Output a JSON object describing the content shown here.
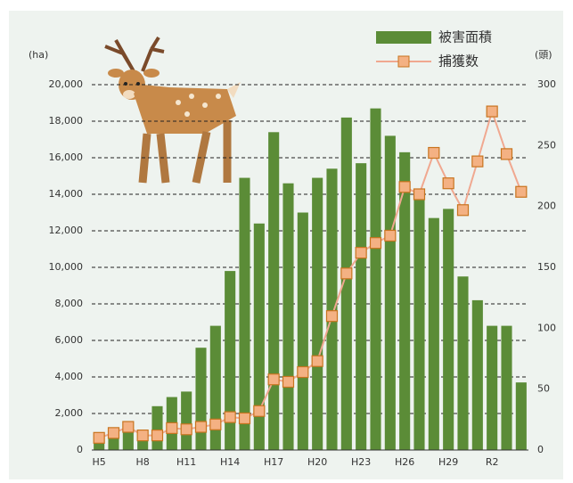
{
  "chart_data": {
    "type": "bar_line",
    "categories": [
      "H5",
      null,
      null,
      "H8",
      null,
      null,
      "H11",
      null,
      null,
      "H14",
      null,
      null,
      "H17",
      null,
      null,
      "H20",
      null,
      null,
      "H23",
      null,
      null,
      "H26",
      null,
      null,
      "H29",
      null,
      null,
      "R2",
      null,
      null
    ],
    "series": [
      {
        "name": "被害面積",
        "type": "bar",
        "color": "#5b8c37",
        "axis": "y",
        "values": [
          500,
          1000,
          1500,
          1000,
          2400,
          2900,
          3200,
          5600,
          6800,
          9800,
          14900,
          12400,
          17400,
          14600,
          13000,
          14900,
          15400,
          18200,
          15700,
          18700,
          17200,
          16300,
          14000,
          12700,
          13200,
          9500,
          8200,
          6800,
          6800,
          3700
        ]
      },
      {
        "name": "捕獲数",
        "type": "line",
        "color": "#f0a890",
        "marker_color": "#f4b183",
        "marker_edge": "#c8741f",
        "axis": "y2",
        "values": [
          10,
          14,
          19,
          12,
          12,
          18,
          17,
          19,
          21,
          27,
          26,
          32,
          58,
          56,
          64,
          73,
          110,
          145,
          162,
          170,
          176,
          216,
          210,
          244,
          219,
          197,
          237,
          278,
          243,
          212
        ]
      }
    ],
    "ylabel": "(ha)",
    "y2label": "(頭)",
    "ylim": [
      0,
      20000
    ],
    "yticks": [
      0,
      {
        "value": 2000,
        "label": "2,000"
      },
      {
        "value": 4000,
        "label": "4,000"
      },
      {
        "value": 6000,
        "label": "6,000"
      },
      {
        "value": 8000,
        "label": "8,000"
      },
      {
        "value": 10000,
        "label": "10,000"
      },
      {
        "value": 12000,
        "label": "12,000"
      },
      {
        "value": 14000,
        "label": "14,000"
      },
      {
        "value": 16000,
        "label": "16,000"
      },
      {
        "value": 18000,
        "label": "18,000"
      },
      {
        "value": 20000,
        "label": "20,000"
      }
    ],
    "y2lim": [
      0,
      300
    ],
    "y2ticks": [
      0,
      50,
      100,
      150,
      200,
      250,
      300
    ],
    "grid": true,
    "legend": "top-right"
  }
}
